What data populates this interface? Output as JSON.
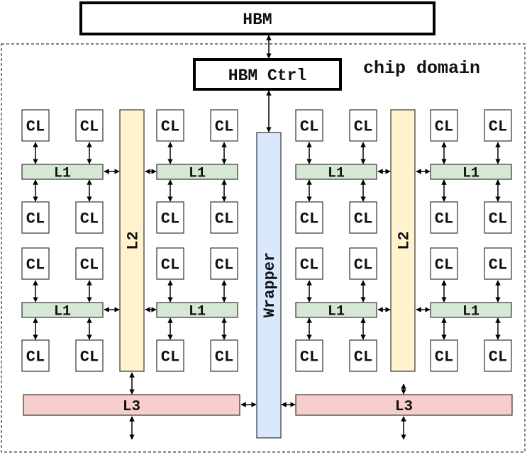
{
  "hbm": {
    "label": "HBM"
  },
  "hbm_ctrl": {
    "label": "HBM Ctrl"
  },
  "chip_domain": {
    "label": "chip domain"
  },
  "wrapper": {
    "label": "Wrapper"
  },
  "l2": {
    "label": "L2"
  },
  "l1": {
    "label": "L1"
  },
  "l3": {
    "label": "L3"
  },
  "cl": {
    "label": "CL"
  },
  "colors": {
    "l1_fill": "#d5e8d4",
    "l2_fill": "#fff2cc",
    "l3_fill": "#f8cecc",
    "wrapper_fill": "#dae8fc",
    "stroke": "#333333"
  }
}
